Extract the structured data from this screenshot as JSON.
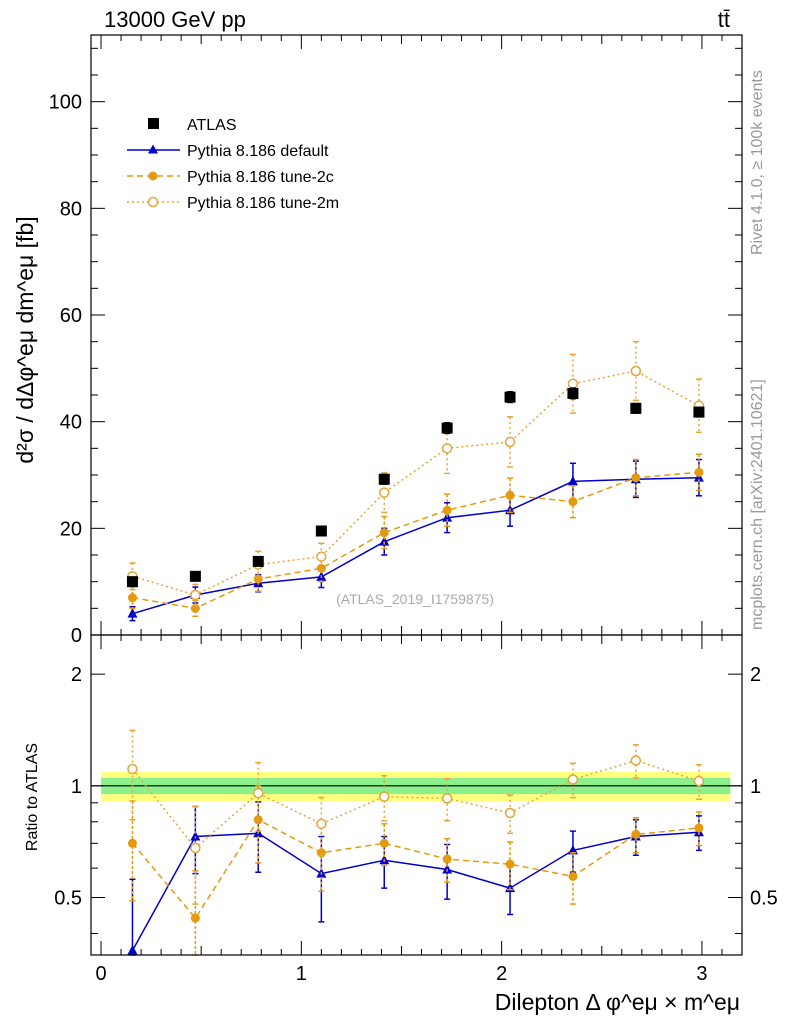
{
  "header": {
    "energy_label": "13000 GeV pp",
    "process_label": "tt̄"
  },
  "side_labels": {
    "rivet": "Rivet 4.1.0, ≥ 100k events",
    "mcplots": "mcplots.cern.ch [arXiv:2401.10621]"
  },
  "watermark": "(ATLAS_2019_I1759875)",
  "axes": {
    "ylabel_main": "d²σ / dΔφ^eμ dm^eμ [fb]",
    "ylabel_ratio": "Ratio to ATLAS",
    "xlabel": "Dilepton Δ φ^eμ × m^eμ",
    "x_ticks": [
      "0",
      "1",
      "2",
      "3"
    ],
    "main_y_ticks": [
      "0",
      "20",
      "40",
      "60",
      "80",
      "100"
    ],
    "ratio_y_ticks": [
      "0.5",
      "1",
      "2"
    ]
  },
  "legend": [
    {
      "label": "ATLAS"
    },
    {
      "label": "Pythia 8.186 default"
    },
    {
      "label": "Pythia 8.186 tune-2c"
    },
    {
      "label": "Pythia 8.186 tune-2m"
    }
  ],
  "colors": {
    "data": "#000000",
    "default": "#0000cc",
    "tune2c": "#e49a0f",
    "tune2m": "#e6a43a",
    "band_inner": "#8cf08c",
    "band_outer": "#ffff80"
  },
  "chart_data": {
    "type": "scatter",
    "x": [
      0.157,
      0.471,
      0.785,
      1.1,
      1.414,
      1.728,
      2.042,
      2.356,
      2.67,
      2.985
    ],
    "xlim": [
      -0.05,
      3.2
    ],
    "main": {
      "ylim": [
        0,
        112.5
      ],
      "series": [
        {
          "name": "ATLAS",
          "values": [
            10.0,
            11.0,
            13.8,
            19.5,
            29.2,
            38.8,
            44.6,
            45.3,
            42.5,
            41.8
          ],
          "errors": [
            0.5,
            0.5,
            0.8,
            0.7,
            0.9,
            1.0,
            1.0,
            1.0,
            0.9,
            0.9
          ]
        },
        {
          "name": "Pythia 8.186 default",
          "values": [
            4.0,
            7.5,
            9.7,
            10.9,
            17.5,
            22.0,
            23.4,
            28.8,
            29.2,
            29.5
          ],
          "errors": [
            1.3,
            1.5,
            1.6,
            2.0,
            2.5,
            2.8,
            3.0,
            3.4,
            3.4,
            3.4
          ]
        },
        {
          "name": "Pythia 8.186 tune-2c",
          "values": [
            7.0,
            5.0,
            10.5,
            12.5,
            19.2,
            23.4,
            26.2,
            25.0,
            29.5,
            30.5
          ],
          "errors": [
            2.0,
            1.5,
            2.3,
            2.5,
            3.0,
            3.0,
            3.2,
            3.0,
            3.4,
            3.4
          ]
        },
        {
          "name": "Pythia 8.186 tune-2m",
          "values": [
            11.0,
            7.5,
            13.2,
            14.7,
            26.7,
            35.0,
            36.2,
            47.1,
            49.5,
            43.0
          ],
          "errors": [
            2.5,
            2.0,
            2.5,
            2.5,
            3.7,
            4.7,
            4.7,
            5.5,
            5.5,
            5.0
          ]
        }
      ]
    },
    "ratio": {
      "ylim": [
        0.35,
        2.55
      ],
      "band_inner_halfwidth": 0.05,
      "band_outer_halfwidth": 0.09,
      "series": [
        {
          "name": "Pythia 8.186 default",
          "values": [
            0.36,
            0.73,
            0.745,
            0.58,
            0.63,
            0.595,
            0.53,
            0.67,
            0.73,
            0.75
          ],
          "errors": [
            0.2,
            0.15,
            0.16,
            0.15,
            0.1,
            0.1,
            0.08,
            0.085,
            0.08,
            0.08
          ]
        },
        {
          "name": "Pythia 8.186 tune-2c",
          "values": [
            0.7,
            0.44,
            0.81,
            0.66,
            0.7,
            0.635,
            0.615,
            0.57,
            0.74,
            0.77
          ],
          "errors": [
            0.21,
            0.15,
            0.19,
            0.14,
            0.09,
            0.085,
            0.09,
            0.09,
            0.08,
            0.08
          ]
        },
        {
          "name": "Pythia 8.186 tune-2m",
          "values": [
            1.11,
            0.68,
            0.955,
            0.79,
            0.935,
            0.925,
            0.845,
            1.04,
            1.17,
            1.03
          ],
          "errors": [
            0.3,
            0.2,
            0.2,
            0.14,
            0.13,
            0.12,
            0.1,
            0.11,
            0.12,
            0.11
          ]
        }
      ]
    }
  }
}
